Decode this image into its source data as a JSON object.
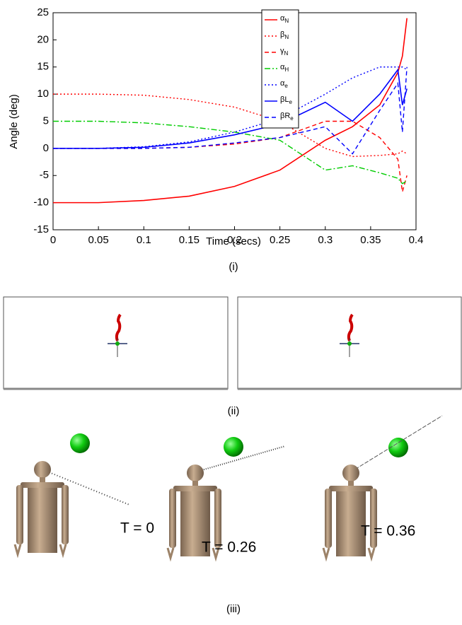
{
  "chart_data": {
    "type": "line",
    "xlabel": "Time (secs)",
    "ylabel": "Angle (deg)",
    "x": [
      0,
      0.05,
      0.1,
      0.15,
      0.2,
      0.25,
      0.3,
      0.33,
      0.36,
      0.38,
      0.385,
      0.39
    ],
    "xlim": [
      0,
      0.4
    ],
    "xticks": [
      0,
      0.05,
      0.1,
      0.15,
      0.2,
      0.25,
      0.3,
      0.35,
      0.4
    ],
    "ylim": [
      -15,
      25
    ],
    "yticks": [
      -15,
      -10,
      -5,
      0,
      5,
      10,
      15,
      20,
      25
    ],
    "legend": "top-center",
    "series": [
      {
        "name": "αN",
        "color": "#ff0000",
        "dash": "solid",
        "values": [
          -10,
          -10,
          -9.6,
          -8.8,
          -7,
          -4,
          1.5,
          4,
          8,
          14,
          17,
          24
        ]
      },
      {
        "name": "βN",
        "color": "#ff0000",
        "dash": "dotted",
        "values": [
          10,
          10,
          9.8,
          9,
          7.6,
          5,
          0,
          -1.5,
          -1.3,
          -1,
          -0.5,
          -1
        ]
      },
      {
        "name": "γN",
        "color": "#ff0000",
        "dash": "dashed",
        "values": [
          0,
          0,
          0,
          0.2,
          0.8,
          2,
          5,
          5,
          2,
          -2,
          -8,
          -5
        ]
      },
      {
        "name": "αH",
        "color": "#00cc00",
        "dash": "dashdot",
        "values": [
          5,
          5,
          4.7,
          4,
          3,
          1.5,
          -4,
          -3.2,
          -4.5,
          -5.5,
          -6.5,
          -6
        ]
      },
      {
        "name": "αe",
        "color": "#0000ff",
        "dash": "dotted",
        "values": [
          0,
          0,
          0.3,
          1.2,
          3,
          5.5,
          10,
          13,
          15,
          15,
          15,
          14.5
        ]
      },
      {
        "name": "βLe",
        "color": "#0000ff",
        "dash": "solid",
        "values": [
          0,
          0,
          0.2,
          1,
          2.5,
          4.5,
          8.5,
          5,
          10,
          14.5,
          8,
          11
        ]
      },
      {
        "name": "βRe",
        "color": "#0000ff",
        "dash": "dashed",
        "values": [
          0,
          0,
          0,
          0.2,
          1,
          2,
          4,
          -1,
          7,
          12,
          3,
          15
        ]
      }
    ]
  },
  "panels": {
    "i": "(i)",
    "ii": "(ii)",
    "iii": "(iii)",
    "times": [
      "T = 0",
      "T = 0.26",
      "T = 0.36"
    ]
  }
}
